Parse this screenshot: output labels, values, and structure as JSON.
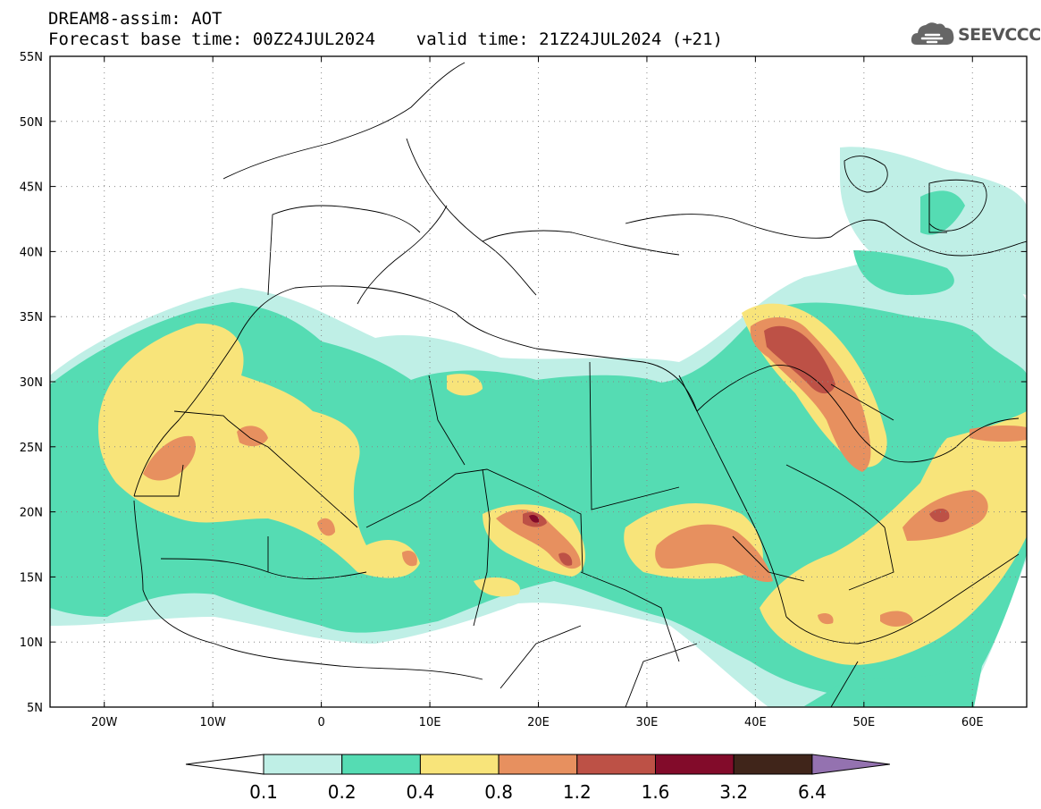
{
  "header": {
    "title_line1": "DREAM8-assim: AOT",
    "title_line2": "Forecast base time: 00Z24JUL2024    valid time: 21Z24JUL2024 (+21)"
  },
  "logo": {
    "text": "SEEVCCC",
    "icon": "cloud-icon"
  },
  "map": {
    "lon_range": [
      -25,
      65
    ],
    "lat_range": [
      5,
      55
    ],
    "lon_ticks": [
      {
        "value": -20,
        "label": "20W"
      },
      {
        "value": -10,
        "label": "10W"
      },
      {
        "value": 0,
        "label": "0"
      },
      {
        "value": 10,
        "label": "10E"
      },
      {
        "value": 20,
        "label": "20E"
      },
      {
        "value": 30,
        "label": "30E"
      },
      {
        "value": 40,
        "label": "40E"
      },
      {
        "value": 50,
        "label": "50E"
      },
      {
        "value": 60,
        "label": "60E"
      }
    ],
    "lat_ticks": [
      {
        "value": 55,
        "label": "55N"
      },
      {
        "value": 50,
        "label": "50N"
      },
      {
        "value": 45,
        "label": "45N"
      },
      {
        "value": 40,
        "label": "40N"
      },
      {
        "value": 35,
        "label": "35N"
      },
      {
        "value": 30,
        "label": "30N"
      },
      {
        "value": 25,
        "label": "25N"
      },
      {
        "value": 20,
        "label": "20N"
      },
      {
        "value": 15,
        "label": "15N"
      },
      {
        "value": 10,
        "label": "10N"
      },
      {
        "value": 5,
        "label": "5N"
      }
    ],
    "gridlines": "dotted"
  },
  "colorbar": {
    "labels": [
      "0.1",
      "0.2",
      "0.4",
      "0.8",
      "1.2",
      "1.6",
      "3.2",
      "6.4"
    ],
    "colors": [
      "#bfefe6",
      "#55dcb3",
      "#f8e47a",
      "#e7905f",
      "#bd5146",
      "#820b2a",
      "#40251a"
    ],
    "over_color": "#9472b0",
    "under_color": "#ffffff"
  }
}
